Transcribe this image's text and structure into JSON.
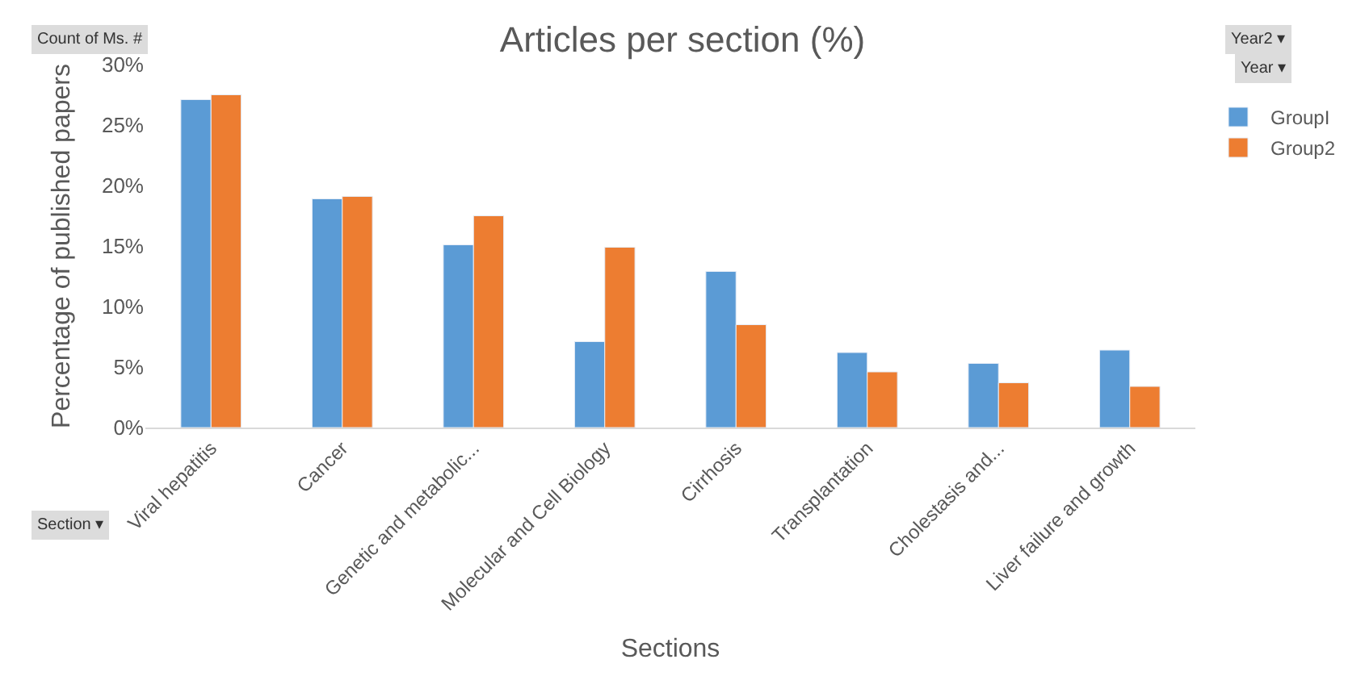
{
  "chart_data": {
    "type": "bar",
    "title": "Articles per section (%)",
    "xlabel": "Sections",
    "ylabel": "Percentage of published papers",
    "categories": [
      "Viral hepatitis",
      "Cancer",
      "Genetic and metabolic...",
      "Molecular and Cell Biology",
      "Cirrhosis",
      "Transplantation",
      "Cholestasis and...",
      "Liver failure and growth"
    ],
    "series": [
      {
        "name": "GroupI",
        "color": "#5b9bd5",
        "values": [
          27.1,
          18.9,
          15.1,
          7.1,
          12.9,
          6.2,
          5.3,
          6.4
        ]
      },
      {
        "name": "Group2",
        "color": "#ed7d31",
        "values": [
          27.5,
          19.1,
          17.5,
          14.9,
          8.5,
          4.6,
          3.7,
          3.4
        ]
      }
    ],
    "ylim": [
      0,
      30
    ],
    "yticks": [
      {
        "value": 0,
        "label": "0%"
      },
      {
        "value": 5,
        "label": "5%"
      },
      {
        "value": 10,
        "label": "10%"
      },
      {
        "value": 15,
        "label": "15%"
      },
      {
        "value": 20,
        "label": "20%"
      },
      {
        "value": 25,
        "label": "25%"
      },
      {
        "value": 30,
        "label": "30%"
      }
    ],
    "legend": "top right",
    "annotations": [
      "Count of Ms. #",
      "Year2 ▾",
      "Year ▾",
      "Section ▾"
    ]
  }
}
